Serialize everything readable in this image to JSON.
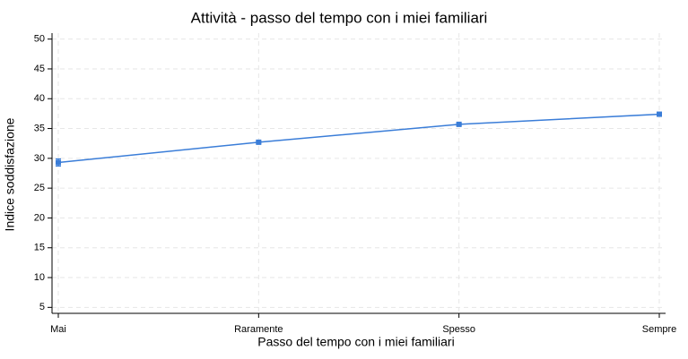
{
  "chart_data": {
    "type": "line",
    "title": "Attività - passo del tempo con i miei familiari",
    "x_label": "Passo del tempo con i miei familiari",
    "y_label": "Indice soddisfazione",
    "categories": [
      "Mai",
      "Raramente",
      "Spesso",
      "Sempre"
    ],
    "series": [
      {
        "name": "Indice soddisfazione",
        "color": "#3a7dd8",
        "values": [
          29.3,
          32.7,
          35.7,
          37.4
        ],
        "errors": [
          0.6,
          0.2,
          0.2,
          0.3
        ]
      }
    ],
    "ylim": [
      4,
      51
    ],
    "yticks": [
      5,
      10,
      15,
      20,
      25,
      30,
      35,
      40,
      45,
      50
    ],
    "grid": true
  }
}
